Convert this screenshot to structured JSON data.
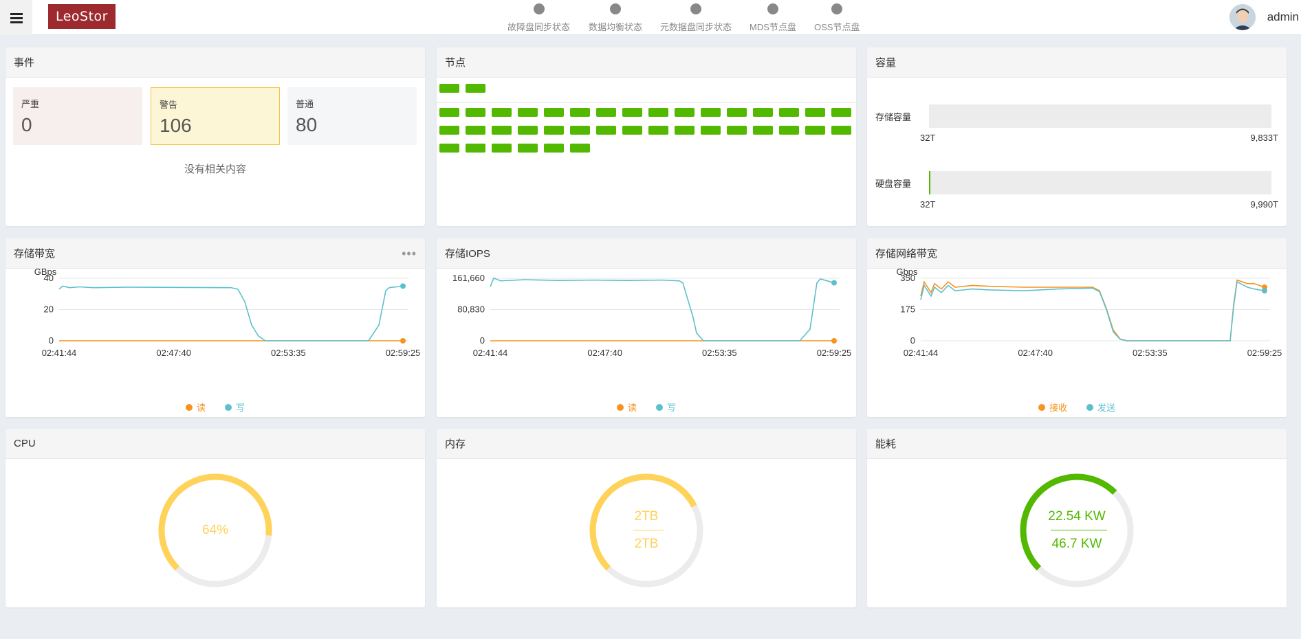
{
  "header": {
    "logo_text": "LeoStor",
    "user": "admin",
    "status_items": [
      {
        "label": "故障盘同步状态"
      },
      {
        "label": "数据均衡状态"
      },
      {
        "label": "元数据盘同步状态"
      },
      {
        "label": "MDS节点盘"
      },
      {
        "label": "OSS节点盘"
      }
    ]
  },
  "events": {
    "title": "事件",
    "critical": {
      "label": "严重",
      "value": "0"
    },
    "warning": {
      "label": "警告",
      "value": "106"
    },
    "normal": {
      "label": "普通",
      "value": "80"
    },
    "empty_text": "没有相关内容"
  },
  "nodes": {
    "title": "节点",
    "top_count": 2,
    "grid_count": 38,
    "color": "#52b800"
  },
  "capacity": {
    "title": "容量",
    "storage": {
      "label": "存储容量",
      "min": "32T",
      "max": "9,833T",
      "fraction": 0.0
    },
    "disk": {
      "label": "硬盘容量",
      "min": "32T",
      "max": "9,990T",
      "fraction": 0.003
    }
  },
  "colors": {
    "read": "#f7931e",
    "write": "#5bc0cd",
    "green": "#52b800",
    "yellow": "#ffd25a",
    "track": "#ececec"
  },
  "bandwidth": {
    "title": "存储带宽",
    "legend": [
      "读",
      "写"
    ]
  },
  "iops": {
    "title": "存储IOPS",
    "legend": [
      "读",
      "写"
    ]
  },
  "network": {
    "title": "存储网络带宽",
    "legend": [
      "接收",
      "发送"
    ]
  },
  "chart_data": [
    {
      "type": "line",
      "ylabel": "GBps",
      "ylim": [
        0,
        40
      ],
      "yticks": [
        "0",
        "20",
        "40"
      ],
      "xticks": [
        "02:41:44",
        "02:47:40",
        "02:53:35",
        "02:59:25"
      ],
      "series": [
        {
          "name": "读",
          "x": [
            0,
            1
          ],
          "y": [
            0,
            0
          ]
        },
        {
          "name": "写",
          "x": [
            0,
            0.01,
            0.03,
            0.06,
            0.1,
            0.2,
            0.3,
            0.4,
            0.5,
            0.52,
            0.54,
            0.56,
            0.58,
            0.6,
            0.7,
            0.8,
            0.9,
            0.93,
            0.95,
            0.96,
            1
          ],
          "y": [
            33,
            35,
            34,
            34.5,
            34,
            34.3,
            34.2,
            34.1,
            34,
            33,
            25,
            10,
            3,
            0,
            0,
            0,
            0,
            10,
            32,
            34,
            35
          ]
        }
      ]
    },
    {
      "type": "line",
      "ylim": [
        0,
        161660
      ],
      "yticks": [
        "0",
        "80,830",
        "161,660"
      ],
      "xticks": [
        "02:41:44",
        "02:47:40",
        "02:53:35",
        "02:59:25"
      ],
      "series": [
        {
          "name": "读",
          "x": [
            0,
            1
          ],
          "y": [
            0,
            0
          ]
        },
        {
          "name": "写",
          "x": [
            0,
            0.01,
            0.03,
            0.1,
            0.2,
            0.3,
            0.4,
            0.5,
            0.55,
            0.56,
            0.57,
            0.59,
            0.6,
            0.62,
            0.7,
            0.8,
            0.9,
            0.93,
            0.95,
            0.96,
            1
          ],
          "y": [
            140000,
            162000,
            155000,
            158000,
            156000,
            157000,
            156000,
            157000,
            155000,
            150000,
            120000,
            60000,
            20000,
            0,
            0,
            0,
            0,
            30000,
            150000,
            160000,
            150000
          ]
        }
      ]
    },
    {
      "type": "line",
      "ylabel": "Gbps",
      "ylim": [
        0,
        350
      ],
      "yticks": [
        "0",
        "175",
        "350"
      ],
      "xticks": [
        "02:41:44",
        "02:47:40",
        "02:53:35",
        "02:59:25"
      ],
      "series": [
        {
          "name": "接收",
          "x": [
            0,
            0.01,
            0.03,
            0.04,
            0.06,
            0.08,
            0.1,
            0.15,
            0.2,
            0.3,
            0.4,
            0.5,
            0.52,
            0.54,
            0.56,
            0.58,
            0.6,
            0.7,
            0.8,
            0.9,
            0.91,
            0.92,
            0.95,
            0.97,
            1
          ],
          "y": [
            250,
            330,
            270,
            320,
            290,
            330,
            300,
            310,
            305,
            300,
            300,
            300,
            280,
            180,
            60,
            10,
            0,
            0,
            0,
            0,
            200,
            340,
            320,
            320,
            300
          ]
        },
        {
          "name": "发送",
          "x": [
            0,
            0.01,
            0.03,
            0.04,
            0.06,
            0.08,
            0.1,
            0.15,
            0.2,
            0.3,
            0.4,
            0.5,
            0.52,
            0.54,
            0.56,
            0.58,
            0.6,
            0.7,
            0.8,
            0.9,
            0.91,
            0.92,
            0.95,
            0.97,
            1
          ],
          "y": [
            230,
            310,
            250,
            300,
            270,
            310,
            280,
            290,
            285,
            280,
            290,
            295,
            275,
            175,
            50,
            8,
            0,
            0,
            0,
            0,
            190,
            330,
            300,
            290,
            280
          ]
        }
      ]
    }
  ],
  "cpu": {
    "title": "CPU",
    "percent": 64,
    "label": "64%"
  },
  "memory": {
    "title": "内存",
    "used": "2TB",
    "total": "2TB",
    "fraction": 0.55
  },
  "power": {
    "title": "能耗",
    "used": "22.54 KW",
    "total": "46.7 KW",
    "fraction": 0.5
  }
}
